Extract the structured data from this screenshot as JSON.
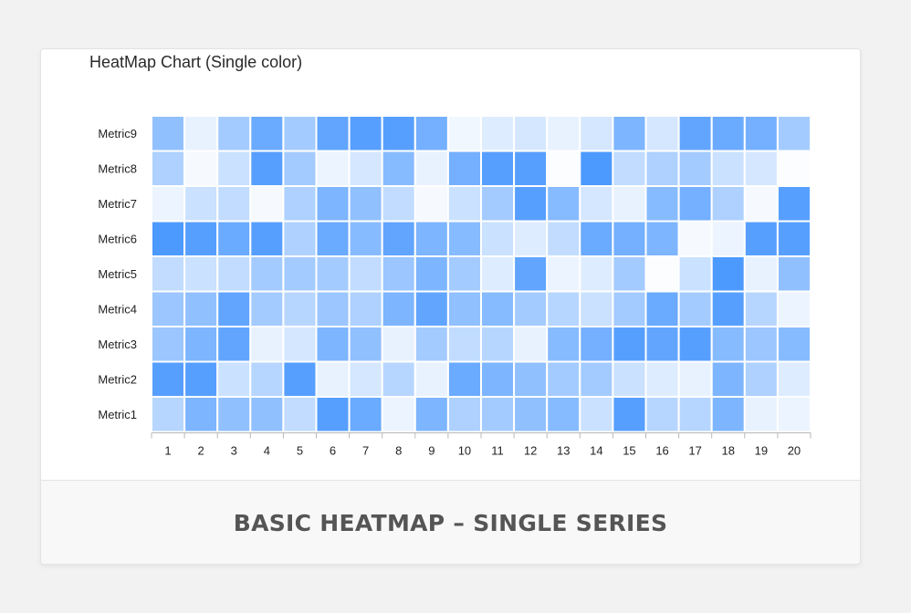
{
  "card": {
    "footer_label": "BASIC HEATMAP – SINGLE SERIES"
  },
  "chart_data": {
    "type": "heatmap",
    "title": "HeatMap Chart (Single color)",
    "color": "#3a8fff",
    "x_categories": [
      "1",
      "2",
      "3",
      "4",
      "5",
      "6",
      "7",
      "8",
      "9",
      "10",
      "11",
      "12",
      "13",
      "14",
      "15",
      "16",
      "17",
      "18",
      "19",
      "20"
    ],
    "value_range": [
      0,
      100
    ],
    "series": [
      {
        "name": "Metric9",
        "values": [
          55,
          10,
          45,
          75,
          45,
          80,
          85,
          85,
          70,
          5,
          15,
          20,
          10,
          20,
          65,
          20,
          80,
          75,
          70,
          45
        ]
      },
      {
        "name": "Metric8",
        "values": [
          40,
          3,
          25,
          85,
          45,
          8,
          20,
          60,
          10,
          70,
          85,
          85,
          0,
          90,
          30,
          40,
          45,
          25,
          20,
          0
        ]
      },
      {
        "name": "Metric7",
        "values": [
          8,
          25,
          30,
          3,
          40,
          65,
          55,
          30,
          3,
          25,
          45,
          85,
          60,
          20,
          10,
          60,
          70,
          40,
          3,
          85
        ]
      },
      {
        "name": "Metric6",
        "values": [
          90,
          85,
          75,
          85,
          40,
          75,
          60,
          80,
          65,
          60,
          25,
          15,
          30,
          75,
          70,
          65,
          3,
          8,
          85,
          85
        ]
      },
      {
        "name": "Metric5",
        "values": [
          30,
          25,
          30,
          45,
          45,
          45,
          30,
          50,
          65,
          45,
          15,
          80,
          8,
          15,
          45,
          0,
          25,
          90,
          10,
          55
        ]
      },
      {
        "name": "Metric4",
        "values": [
          50,
          55,
          80,
          45,
          35,
          50,
          40,
          65,
          80,
          55,
          60,
          45,
          35,
          25,
          45,
          75,
          45,
          85,
          35,
          8
        ]
      },
      {
        "name": "Metric3",
        "values": [
          50,
          65,
          80,
          10,
          20,
          65,
          55,
          10,
          45,
          30,
          35,
          10,
          60,
          70,
          85,
          80,
          85,
          60,
          50,
          60
        ]
      },
      {
        "name": "Metric2",
        "values": [
          85,
          85,
          25,
          35,
          85,
          10,
          20,
          35,
          10,
          75,
          65,
          55,
          45,
          45,
          25,
          15,
          10,
          65,
          40,
          15
        ]
      },
      {
        "name": "Metric1",
        "values": [
          35,
          65,
          55,
          55,
          30,
          85,
          75,
          8,
          65,
          40,
          45,
          55,
          60,
          25,
          85,
          35,
          35,
          65,
          10,
          8
        ]
      }
    ]
  }
}
